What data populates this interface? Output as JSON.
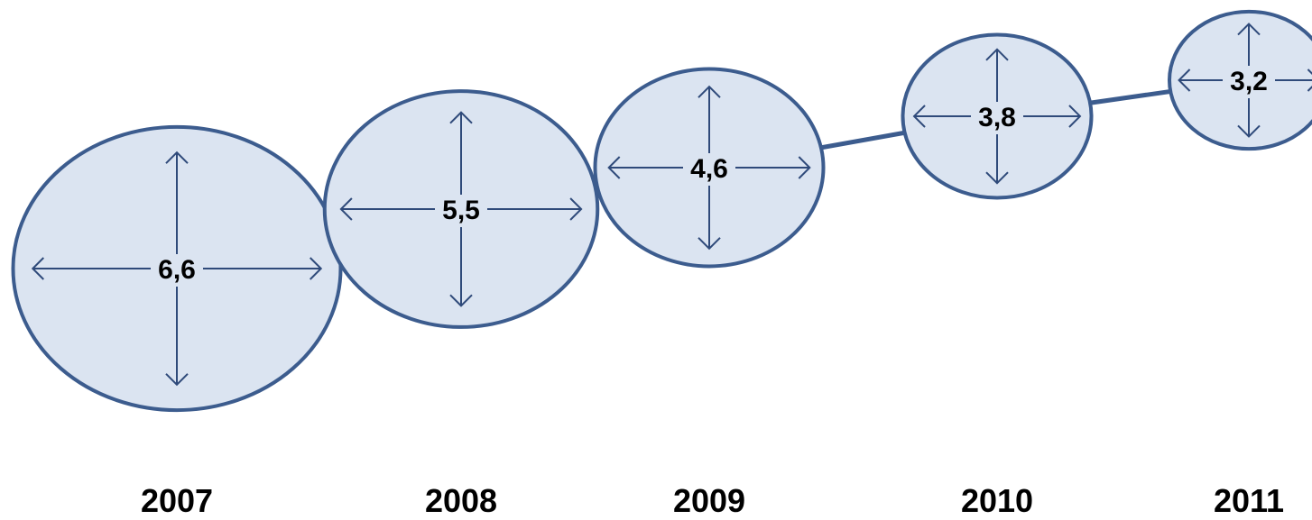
{
  "chart_data": {
    "type": "bubble",
    "title": "",
    "xlabel": "",
    "ylabel": "",
    "categories": [
      "2007",
      "2008",
      "2009",
      "2010",
      "2011"
    ],
    "values": [
      6.6,
      5.5,
      4.6,
      3.8,
      3.2
    ],
    "value_labels": [
      "6,6",
      "5,5",
      "4,6",
      "3,8",
      "3,2"
    ],
    "trend_line": true,
    "grid": false,
    "legend": "none",
    "colors": {
      "fill": "#dbe4f1",
      "stroke": "#3c5c8e",
      "arrow": "#2f4a7a"
    }
  }
}
